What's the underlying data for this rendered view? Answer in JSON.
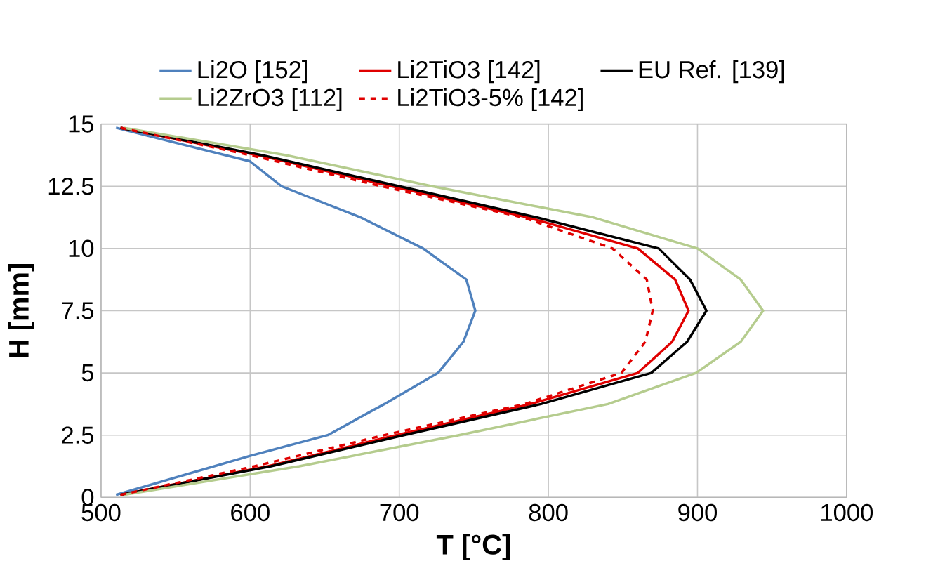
{
  "chart_data": {
    "type": "line",
    "xlabel": "T [°C]",
    "ylabel": "H [mm]",
    "xlim": [
      500,
      1000
    ],
    "xticks": [
      500,
      600,
      700,
      800,
      900,
      1000
    ],
    "ylim": [
      0,
      15
    ],
    "yticks": [
      0,
      2.5,
      5,
      7.5,
      10,
      12.5,
      15
    ],
    "grid": true,
    "legend": "top",
    "marker": "none",
    "series": [
      {
        "name": "Li2O [152]",
        "color": "#4f81bd",
        "line_style": "solid",
        "x": [
          510,
          600,
          652,
          690,
          726,
          743,
          751,
          745,
          716,
          674,
          621,
          600,
          510
        ],
        "values": [
          0.1,
          1.67,
          2.5,
          3.75,
          5,
          6.25,
          7.5,
          8.75,
          10,
          11.25,
          12.5,
          13.5,
          14.85
        ]
      },
      {
        "name": "Li2TiO3 [142]",
        "color": "#e00000",
        "line_style": "solid",
        "x": [
          513,
          612,
          698,
          788,
          860,
          883,
          894,
          885,
          860,
          786,
          695,
          605,
          513
        ],
        "values": [
          0.1,
          1.25,
          2.5,
          3.75,
          5,
          6.25,
          7.5,
          8.75,
          10,
          11.25,
          12.5,
          13.75,
          14.85
        ]
      },
      {
        "name": "EU Ref. [139]",
        "color": "#000000",
        "line_style": "solid",
        "x": [
          513,
          614,
          703,
          795,
          869,
          893,
          906,
          895,
          874,
          792,
          700,
          608,
          513
        ],
        "values": [
          0.1,
          1.25,
          2.5,
          3.75,
          5,
          6.25,
          7.5,
          8.75,
          10,
          11.25,
          12.5,
          13.75,
          14.85
        ]
      },
      {
        "name": "Li2ZrO3 [112]",
        "color": "#b5cc8e",
        "line_style": "solid",
        "x": [
          515,
          633,
          740,
          840,
          899,
          929,
          944,
          929,
          900,
          830,
          722,
          624,
          515
        ],
        "values": [
          0.1,
          1.25,
          2.5,
          3.75,
          5,
          6.25,
          7.5,
          8.75,
          10,
          11.25,
          12.5,
          13.75,
          14.85
        ]
      },
      {
        "name": "Li2TiO3-5% [142]",
        "color": "#e00000",
        "line_style": "dashed",
        "x": [
          513,
          603,
          690,
          784,
          849,
          865,
          870,
          866,
          843,
          783,
          688,
          600,
          513
        ],
        "values": [
          0.1,
          1.25,
          2.5,
          3.75,
          5,
          6.25,
          7.5,
          8.75,
          10,
          11.25,
          12.5,
          13.75,
          14.85
        ]
      }
    ]
  }
}
